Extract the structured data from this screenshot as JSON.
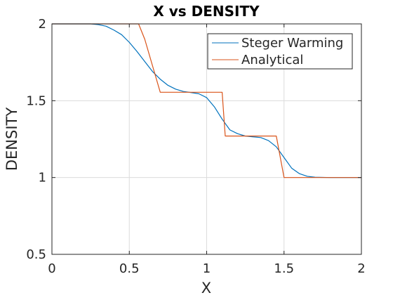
{
  "chart_data": {
    "type": "line",
    "title": "X vs DENSITY",
    "xlabel": "X",
    "ylabel": "DENSITY",
    "xlim": [
      0,
      2
    ],
    "ylim": [
      0.5,
      2
    ],
    "xticks": [
      "0",
      "0.5",
      "1",
      "1.5",
      "2"
    ],
    "yticks": [
      "0.5",
      "1",
      "1.5",
      "2"
    ],
    "grid": true,
    "legend_position": "top-right",
    "series": [
      {
        "name": "Steger Warming",
        "color": "#0072BD",
        "x": [
          0,
          0.25,
          0.3,
          0.35,
          0.4,
          0.45,
          0.5,
          0.55,
          0.6,
          0.65,
          0.7,
          0.75,
          0.8,
          0.85,
          0.9,
          0.95,
          1.0,
          1.05,
          1.1,
          1.15,
          1.2,
          1.25,
          1.3,
          1.35,
          1.4,
          1.45,
          1.5,
          1.55,
          1.6,
          1.65,
          1.7,
          1.8,
          2.0
        ],
        "y": [
          2,
          2,
          1.995,
          1.985,
          1.96,
          1.93,
          1.88,
          1.82,
          1.755,
          1.69,
          1.64,
          1.6,
          1.575,
          1.56,
          1.553,
          1.545,
          1.52,
          1.46,
          1.38,
          1.31,
          1.285,
          1.27,
          1.265,
          1.26,
          1.24,
          1.2,
          1.13,
          1.06,
          1.025,
          1.008,
          1.002,
          1.0,
          1.0
        ]
      },
      {
        "name": "Analytical",
        "color": "#D95319",
        "x": [
          0,
          0.56,
          0.6,
          0.7,
          1.1,
          1.12,
          1.45,
          1.5,
          2.0
        ],
        "y": [
          2,
          2,
          1.9,
          1.555,
          1.555,
          1.27,
          1.27,
          1.0,
          1.0
        ]
      }
    ]
  }
}
